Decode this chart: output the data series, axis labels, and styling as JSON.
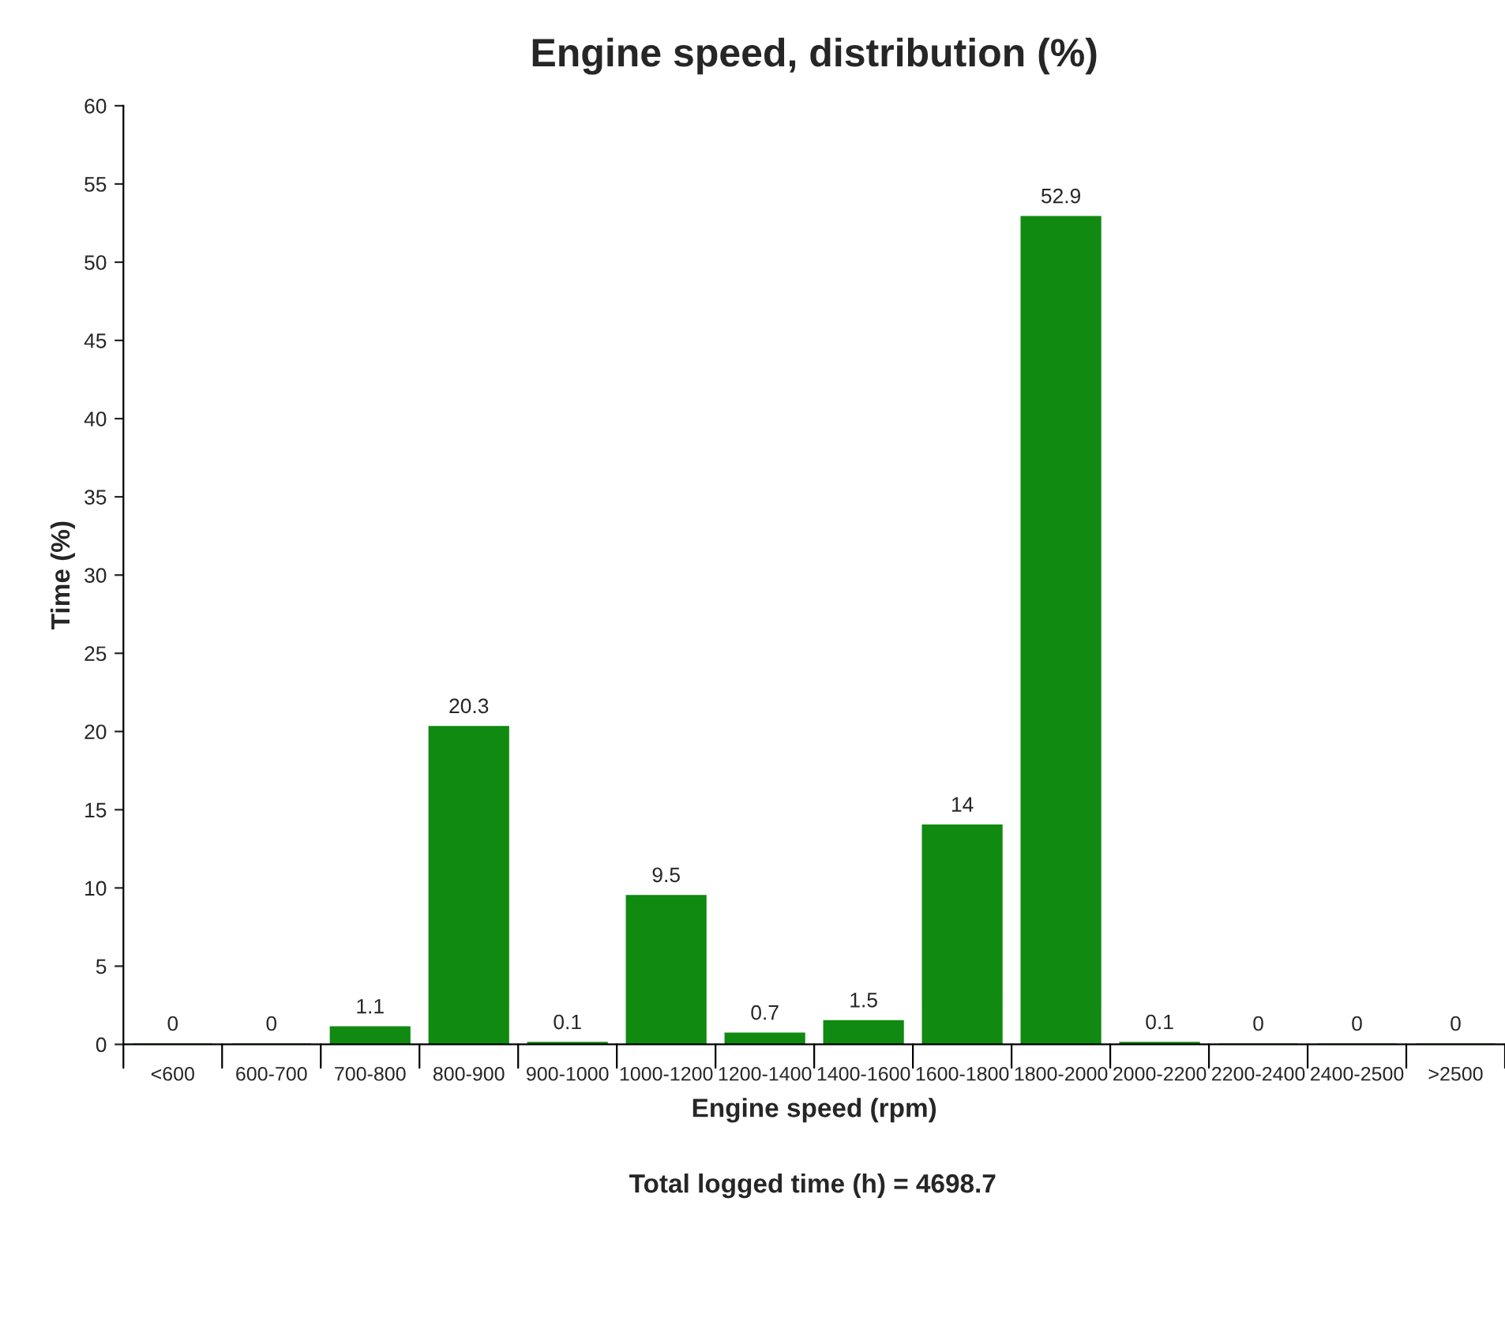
{
  "chart_data": {
    "type": "bar",
    "title": "Engine speed, distribution (%)",
    "xlabel": "Engine speed (rpm)",
    "ylabel": "Time (%)",
    "categories": [
      "<600",
      "600-700",
      "700-800",
      "800-900",
      "900-1000",
      "1000-1200",
      "1200-1400",
      "1400-1600",
      "1600-1800",
      "1800-2000",
      "2000-2200",
      "2200-2400",
      "2400-2500",
      ">2500"
    ],
    "values": [
      0,
      0,
      1.1,
      20.3,
      0.1,
      9.5,
      0.7,
      1.5,
      14,
      52.9,
      0.1,
      0,
      0,
      0
    ],
    "color": "#108a10",
    "ylim": [
      0,
      60
    ],
    "yticks": [
      0,
      5,
      10,
      15,
      20,
      25,
      30,
      35,
      40,
      45,
      50,
      55,
      60
    ],
    "data_labels": true,
    "grid": false,
    "annotations": [
      "Total logged time (h) = 4698.7"
    ]
  }
}
